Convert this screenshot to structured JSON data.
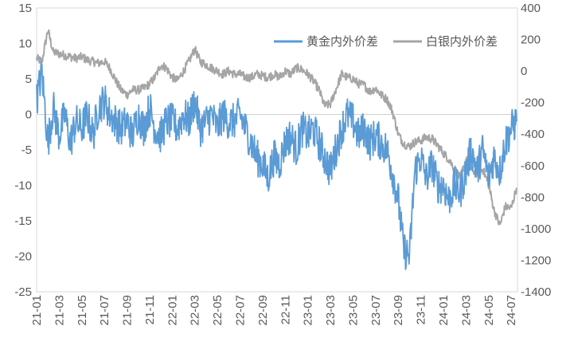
{
  "chart_data": {
    "type": "line",
    "title": "",
    "xlabel": "",
    "ylabel": "",
    "x_tick_labels": [
      "21-01",
      "21-03",
      "21-05",
      "21-07",
      "21-09",
      "21-11",
      "22-01",
      "22-03",
      "22-05",
      "22-07",
      "22-09",
      "22-11",
      "23-01",
      "23-03",
      "23-05",
      "23-07",
      "23-09",
      "23-11",
      "24-01",
      "24-03",
      "24-05",
      "24-07"
    ],
    "x_range_months": [
      "2021-01",
      "2024-07"
    ],
    "y_left": {
      "min": -25,
      "max": 15,
      "step": 5,
      "ticks": [
        "-25",
        "-20",
        "-15",
        "-10",
        "-5",
        "0",
        "5",
        "10",
        "15"
      ]
    },
    "y_right": {
      "min": -1400,
      "max": 400,
      "step": 200,
      "ticks": [
        "-1400",
        "-1200",
        "-1000",
        "-800",
        "-600",
        "-400",
        "-200",
        "0",
        "200",
        "400"
      ]
    },
    "legend_position": "top-right",
    "grid": false,
    "series": [
      {
        "name": "黄金内外价差",
        "axis": "left",
        "color": "#5B9BD5",
        "points": [
          [
            "2021-01",
            2
          ],
          [
            "2021-01-15",
            6
          ],
          [
            "2021-02",
            -4
          ],
          [
            "2021-02-15",
            1
          ],
          [
            "2021-03",
            -3
          ],
          [
            "2021-03-15",
            0
          ],
          [
            "2021-04",
            -4
          ],
          [
            "2021-04-15",
            -1
          ],
          [
            "2021-05",
            -2
          ],
          [
            "2021-05-15",
            0
          ],
          [
            "2021-06",
            -3
          ],
          [
            "2021-06-15",
            1
          ],
          [
            "2021-07",
            2
          ],
          [
            "2021-07-15",
            0
          ],
          [
            "2021-08",
            -1
          ],
          [
            "2021-08-15",
            -2
          ],
          [
            "2021-09",
            -1
          ],
          [
            "2021-09-15",
            -3
          ],
          [
            "2021-10",
            0
          ],
          [
            "2021-10-15",
            -2
          ],
          [
            "2021-11",
            1
          ],
          [
            "2021-11-15",
            -2
          ],
          [
            "2021-12",
            -3
          ],
          [
            "2021-12-15",
            -1
          ],
          [
            "2022-01",
            -1
          ],
          [
            "2022-01-15",
            -2
          ],
          [
            "2022-02",
            0
          ],
          [
            "2022-02-15",
            -1
          ],
          [
            "2022-03",
            2
          ],
          [
            "2022-03-15",
            -2
          ],
          [
            "2022-04",
            -1
          ],
          [
            "2022-04-15",
            0
          ],
          [
            "2022-05",
            -2
          ],
          [
            "2022-05-15",
            0
          ],
          [
            "2022-06",
            -1
          ],
          [
            "2022-06-15",
            -1
          ],
          [
            "2022-07",
            0
          ],
          [
            "2022-07-15",
            -2
          ],
          [
            "2022-08",
            -4
          ],
          [
            "2022-08-15",
            -6
          ],
          [
            "2022-09",
            -7
          ],
          [
            "2022-09-15",
            -9
          ],
          [
            "2022-10",
            -6
          ],
          [
            "2022-10-15",
            -7
          ],
          [
            "2022-11",
            -4
          ],
          [
            "2022-11-15",
            -3
          ],
          [
            "2022-12",
            -5
          ],
          [
            "2022-12-15",
            -2
          ],
          [
            "2023-01",
            -3
          ],
          [
            "2023-01-15",
            -2
          ],
          [
            "2023-02",
            -4
          ],
          [
            "2023-02-15",
            -6
          ],
          [
            "2023-03",
            -8
          ],
          [
            "2023-03-15",
            -5
          ],
          [
            "2023-04",
            -2
          ],
          [
            "2023-04-15",
            0
          ],
          [
            "2023-05",
            -1
          ],
          [
            "2023-05-15",
            -3
          ],
          [
            "2023-06",
            -2
          ],
          [
            "2023-06-15",
            -4
          ],
          [
            "2023-07",
            -3
          ],
          [
            "2023-07-15",
            -4
          ],
          [
            "2023-08",
            -5
          ],
          [
            "2023-08-15",
            -8
          ],
          [
            "2023-09",
            -12
          ],
          [
            "2023-09-15",
            -19
          ],
          [
            "2023-10",
            -20
          ],
          [
            "2023-10-15",
            -8
          ],
          [
            "2023-11",
            -6
          ],
          [
            "2023-11-15",
            -9
          ],
          [
            "2023-12",
            -7
          ],
          [
            "2023-12-15",
            -10
          ],
          [
            "2024-01",
            -10
          ],
          [
            "2024-01-15",
            -12
          ],
          [
            "2024-02",
            -10
          ],
          [
            "2024-02-15",
            -11
          ],
          [
            "2024-03",
            -8
          ],
          [
            "2024-03-15",
            -5
          ],
          [
            "2024-04",
            -8
          ],
          [
            "2024-04-15",
            -5
          ],
          [
            "2024-05",
            -9
          ],
          [
            "2024-05-15",
            -6
          ],
          [
            "2024-06",
            -8
          ],
          [
            "2024-06-15",
            -4
          ],
          [
            "2024-07",
            -2
          ],
          [
            "2024-07-15",
            -1
          ]
        ]
      },
      {
        "name": "白银内外价差",
        "axis": "right",
        "color": "#A5A5A5",
        "points": [
          [
            "2021-01",
            80
          ],
          [
            "2021-01-15",
            60
          ],
          [
            "2021-02",
            260
          ],
          [
            "2021-02-15",
            120
          ],
          [
            "2021-03",
            110
          ],
          [
            "2021-03-15",
            100
          ],
          [
            "2021-04",
            90
          ],
          [
            "2021-04-15",
            80
          ],
          [
            "2021-05",
            90
          ],
          [
            "2021-05-15",
            70
          ],
          [
            "2021-06",
            60
          ],
          [
            "2021-06-15",
            50
          ],
          [
            "2021-07",
            60
          ],
          [
            "2021-07-15",
            20
          ],
          [
            "2021-08",
            -60
          ],
          [
            "2021-08-15",
            -120
          ],
          [
            "2021-09",
            -150
          ],
          [
            "2021-09-15",
            -120
          ],
          [
            "2021-10",
            -120
          ],
          [
            "2021-10-15",
            -110
          ],
          [
            "2021-11",
            -80
          ],
          [
            "2021-11-15",
            -40
          ],
          [
            "2021-12",
            40
          ],
          [
            "2021-12-15",
            20
          ],
          [
            "2022-01",
            -40
          ],
          [
            "2022-01-15",
            -60
          ],
          [
            "2022-02",
            0
          ],
          [
            "2022-02-15",
            60
          ],
          [
            "2022-03",
            140
          ],
          [
            "2022-03-15",
            60
          ],
          [
            "2022-04",
            40
          ],
          [
            "2022-04-15",
            20
          ],
          [
            "2022-05",
            0
          ],
          [
            "2022-05-15",
            -20
          ],
          [
            "2022-06",
            0
          ],
          [
            "2022-06-15",
            -20
          ],
          [
            "2022-07",
            -20
          ],
          [
            "2022-07-15",
            -40
          ],
          [
            "2022-08",
            -40
          ],
          [
            "2022-08-15",
            -20
          ],
          [
            "2022-09",
            -30
          ],
          [
            "2022-09-15",
            -40
          ],
          [
            "2022-10",
            -20
          ],
          [
            "2022-10-15",
            -40
          ],
          [
            "2022-11",
            0
          ],
          [
            "2022-11-15",
            -20
          ],
          [
            "2022-12",
            20
          ],
          [
            "2022-12-15",
            10
          ],
          [
            "2023-01",
            -20
          ],
          [
            "2023-01-15",
            -60
          ],
          [
            "2023-02",
            -120
          ],
          [
            "2023-02-15",
            -220
          ],
          [
            "2023-03",
            -210
          ],
          [
            "2023-03-15",
            -120
          ],
          [
            "2023-04",
            -20
          ],
          [
            "2023-04-15",
            -40
          ],
          [
            "2023-05",
            -50
          ],
          [
            "2023-05-15",
            -80
          ],
          [
            "2023-06",
            -90
          ],
          [
            "2023-06-15",
            -130
          ],
          [
            "2023-07",
            -110
          ],
          [
            "2023-07-15",
            -150
          ],
          [
            "2023-08",
            -180
          ],
          [
            "2023-08-15",
            -250
          ],
          [
            "2023-09",
            -400
          ],
          [
            "2023-09-15",
            -460
          ],
          [
            "2023-10",
            -480
          ],
          [
            "2023-10-15",
            -450
          ],
          [
            "2023-11",
            -440
          ],
          [
            "2023-11-15",
            -420
          ],
          [
            "2023-12",
            -430
          ],
          [
            "2023-12-15",
            -470
          ],
          [
            "2024-01",
            -520
          ],
          [
            "2024-01-15",
            -560
          ],
          [
            "2024-02",
            -620
          ],
          [
            "2024-02-15",
            -680
          ],
          [
            "2024-03",
            -560
          ],
          [
            "2024-03-15",
            -620
          ],
          [
            "2024-04",
            -660
          ],
          [
            "2024-04-15",
            -620
          ],
          [
            "2024-05",
            -720
          ],
          [
            "2024-05-15",
            -880
          ],
          [
            "2024-06",
            -980
          ],
          [
            "2024-06-15",
            -860
          ],
          [
            "2024-07",
            -870
          ],
          [
            "2024-07-15",
            -740
          ]
        ]
      }
    ]
  }
}
